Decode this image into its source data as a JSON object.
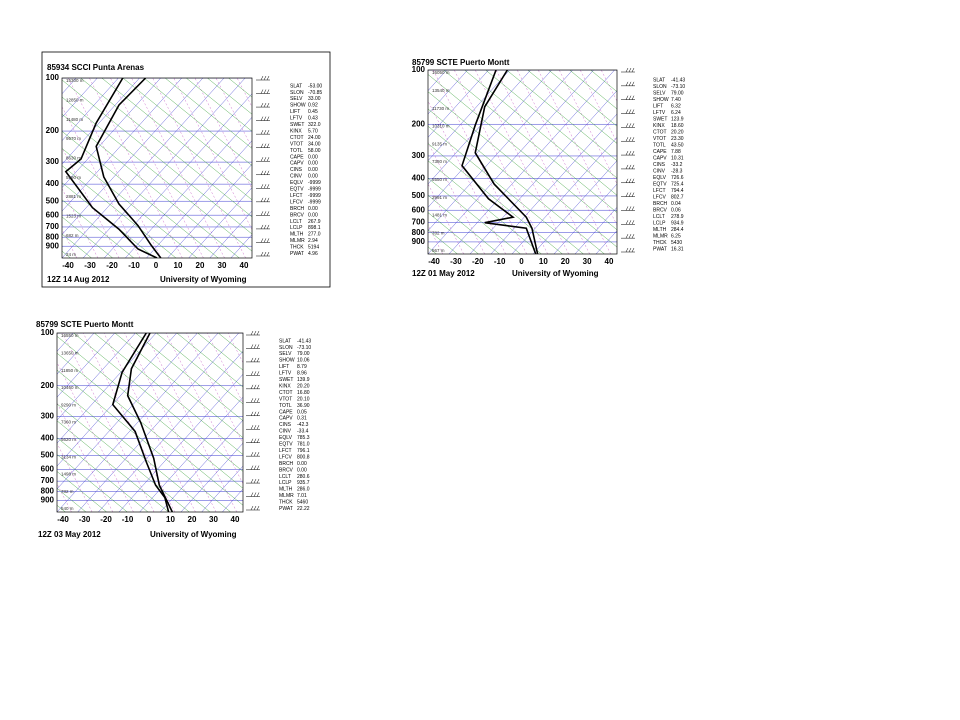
{
  "panels": [
    {
      "title": "85934 SCCI Punta Arenas",
      "date": "12Z 14 Aug 2012",
      "source": "University of Wyoming",
      "pressure_labels": [
        100,
        200,
        300,
        400,
        500,
        600,
        700,
        800,
        900
      ],
      "temperature_labels": [
        -40,
        -30,
        -20,
        -10,
        0,
        10,
        20,
        30,
        40
      ],
      "height_labels": [
        "15300 m",
        "12850 m",
        "11480 m",
        "9570 m",
        "8630 m",
        "5590 m",
        "2881 m",
        "1523 m",
        "682 m",
        "24 m"
      ],
      "indices": [
        [
          "SLAT",
          "-53.00"
        ],
        [
          "SLON",
          "-70.85"
        ],
        [
          "SELV",
          "33.00"
        ],
        [
          "SHOW",
          "0.92"
        ],
        [
          "LIFT",
          "0.45"
        ],
        [
          "LFTV",
          "0.43"
        ],
        [
          "SWET",
          "322.0"
        ],
        [
          "KINX",
          "5.70"
        ],
        [
          "CTOT",
          "24.00"
        ],
        [
          "VTOT",
          "34.00"
        ],
        [
          "TOTL",
          "58.00"
        ],
        [
          "CAPE",
          "0.00"
        ],
        [
          "CAPV",
          "0.00"
        ],
        [
          "CINS",
          "0.00"
        ],
        [
          "CINV",
          "0.00"
        ],
        [
          "EQLV",
          "-9999"
        ],
        [
          "EQTV",
          "-9999"
        ],
        [
          "LFCT",
          "-9999"
        ],
        [
          "LFCV",
          "-9999"
        ],
        [
          "BRCH",
          "0.00"
        ],
        [
          "BRCV",
          "0.00"
        ],
        [
          "LCLT",
          "267.9"
        ],
        [
          "LCLP",
          "898.1"
        ],
        [
          "MLTH",
          "277.0"
        ],
        [
          "MLMR",
          "2.94"
        ],
        [
          "THCK",
          "5194"
        ],
        [
          "PWAT",
          "4.96"
        ]
      ]
    },
    {
      "title": "85799 SCTE Puerto Montt",
      "date": "12Z 01 May 2012",
      "source": "University of Wyoming",
      "pressure_labels": [
        100,
        200,
        300,
        400,
        500,
        600,
        700,
        800,
        900
      ],
      "temperature_labels": [
        -40,
        -30,
        -20,
        -10,
        0,
        10,
        20,
        30,
        40
      ],
      "height_labels": [
        "16050 m",
        "13540 m",
        "11730 m",
        "10310 m",
        "9135 m",
        "7380 m",
        "5550 m",
        "2991 m",
        "1481 m",
        "782 m",
        "567 m"
      ],
      "indices": [
        [
          "SLAT",
          "-41.43"
        ],
        [
          "SLON",
          "-73.10"
        ],
        [
          "SELV",
          "79.00"
        ],
        [
          "SHOW",
          "7.40"
        ],
        [
          "LIFT",
          "6.32"
        ],
        [
          "LFTV",
          "6.24"
        ],
        [
          "SWET",
          "123.9"
        ],
        [
          "KINX",
          "18.60"
        ],
        [
          "CTOT",
          "20.20"
        ],
        [
          "VTOT",
          "23.30"
        ],
        [
          "TOTL",
          "43.50"
        ],
        [
          "CAPE",
          "7.88"
        ],
        [
          "CAPV",
          "10.31"
        ],
        [
          "CINS",
          "-33.2"
        ],
        [
          "CINV",
          "-28.3"
        ],
        [
          "EQLV",
          "726.6"
        ],
        [
          "EQTV",
          "725.4"
        ],
        [
          "LFCT",
          "794.4"
        ],
        [
          "LFCV",
          "802.7"
        ],
        [
          "BRCH",
          "0.04"
        ],
        [
          "BRCV",
          "0.06"
        ],
        [
          "LCLT",
          "278.9"
        ],
        [
          "LCLP",
          "934.9"
        ],
        [
          "MLTH",
          "284.4"
        ],
        [
          "MLMR",
          "6.25"
        ],
        [
          "THCK",
          "5430"
        ],
        [
          "PWAT",
          "16.31"
        ]
      ]
    },
    {
      "title": "85799 SCTE Puerto Montt",
      "date": "12Z 03 May 2012",
      "source": "University of Wyoming",
      "pressure_labels": [
        100,
        200,
        300,
        400,
        500,
        600,
        700,
        800,
        900
      ],
      "temperature_labels": [
        -40,
        -30,
        -20,
        -10,
        0,
        10,
        20,
        30,
        40
      ],
      "height_labels": [
        "16550 m",
        "13650 m",
        "11850 m",
        "10460 m",
        "9290 m",
        "7360 m",
        "5620 m",
        "3134 m",
        "1498 m",
        "782 m",
        "540 m"
      ],
      "indices": [
        [
          "SLAT",
          "-41.43"
        ],
        [
          "SLON",
          "-73.10"
        ],
        [
          "SELV",
          "79.00"
        ],
        [
          "SHOW",
          "10.06"
        ],
        [
          "LIFT",
          "8.79"
        ],
        [
          "LFTV",
          "8.96"
        ],
        [
          "SWET",
          "139.9"
        ],
        [
          "KINX",
          "20.20"
        ],
        [
          "CTOT",
          "16.80"
        ],
        [
          "VTOT",
          "20.10"
        ],
        [
          "TOTL",
          "36.90"
        ],
        [
          "CAPE",
          "0.05"
        ],
        [
          "CAPV",
          "0.31"
        ],
        [
          "CINS",
          "-42.3"
        ],
        [
          "CINV",
          "-33.4"
        ],
        [
          "EQLV",
          "785.3"
        ],
        [
          "EQTV",
          "781.0"
        ],
        [
          "LFCT",
          "796.1"
        ],
        [
          "LFCV",
          "800.8"
        ],
        [
          "BRCH",
          "0.00"
        ],
        [
          "BRCV",
          "0.00"
        ],
        [
          "LCLT",
          "280.6"
        ],
        [
          "LCLP",
          "935.7"
        ],
        [
          "MLTH",
          "286.0"
        ],
        [
          "MLMR",
          "7.01"
        ],
        [
          "THCK",
          "5460"
        ],
        [
          "PWAT",
          "22.22"
        ]
      ]
    }
  ]
}
